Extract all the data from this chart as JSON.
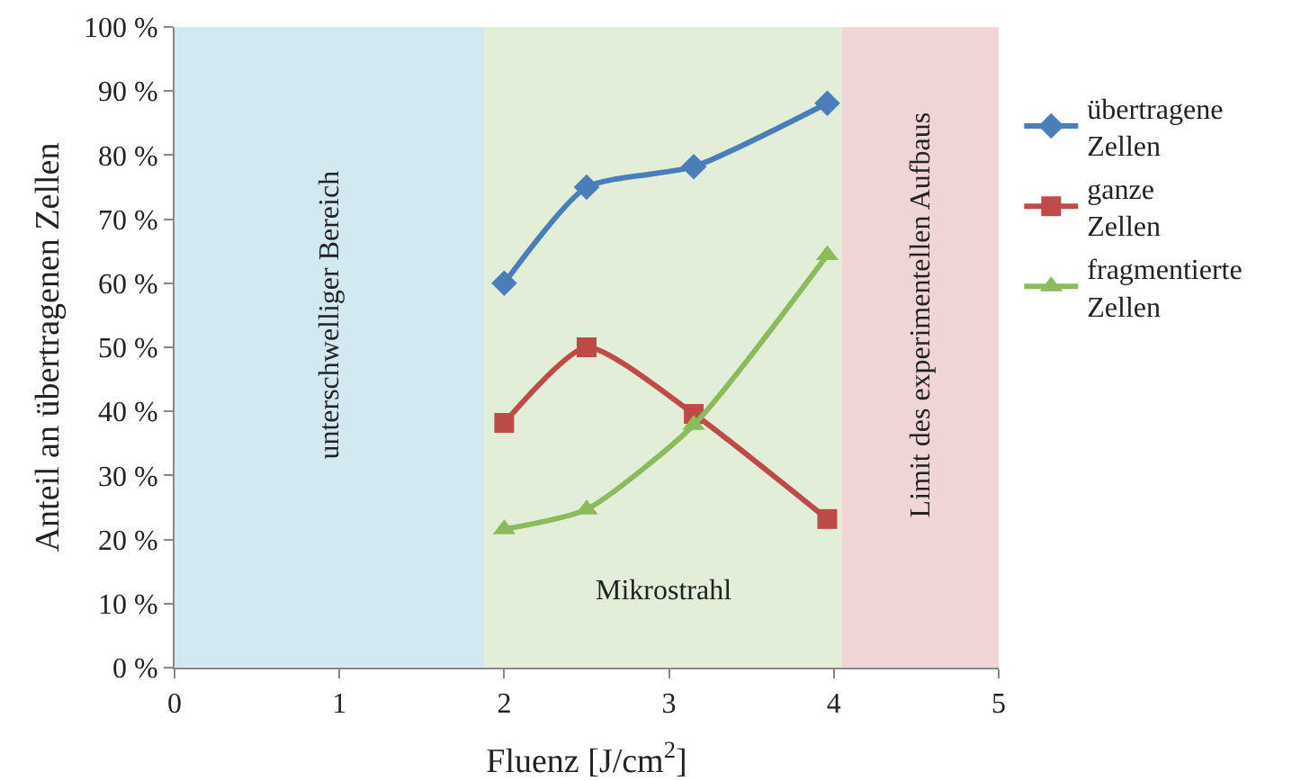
{
  "chart_data": {
    "type": "line",
    "xlabel": "Fluenz [J/cm$^{2}$]",
    "ylabel": "Anteil an übertragenen Zellen",
    "xlim": [
      0,
      5
    ],
    "xticks": [
      0,
      1,
      2,
      3,
      4,
      5
    ],
    "ylim": [
      0,
      100
    ],
    "yticks": [
      {
        "value": 0,
        "label": "0 %"
      },
      {
        "value": 10,
        "label": "10 %"
      },
      {
        "value": 20,
        "label": "20 %"
      },
      {
        "value": 30,
        "label": "30 %"
      },
      {
        "value": 40,
        "label": "40 %"
      },
      {
        "value": 50,
        "label": "50 %"
      },
      {
        "value": 60,
        "label": "60 %"
      },
      {
        "value": 70,
        "label": "70 %"
      },
      {
        "value": 80,
        "label": "80 %"
      },
      {
        "value": 90,
        "label": "90 %"
      },
      {
        "value": 100,
        "label": "100 %"
      }
    ],
    "x": [
      2.0,
      2.5,
      3.15,
      3.96
    ],
    "series": [
      {
        "name": "übertragene Zellen",
        "color": "#4a7ebb",
        "marker": "diamond",
        "values": [
          60,
          75,
          78.2,
          88.1
        ]
      },
      {
        "name": "ganze Zellen",
        "color": "#be4b48",
        "marker": "square",
        "values": [
          38.2,
          50,
          39.6,
          23.2
        ]
      },
      {
        "name": "fragmentierte Zellen",
        "color": "#8cbb5a",
        "marker": "triangle",
        "values": [
          21.6,
          24.7,
          37.9,
          64.4
        ]
      }
    ],
    "bands": [
      {
        "axis": "x",
        "from": 0,
        "to": 1.88,
        "label": "unterschwelliger Bereich",
        "color": "#d3e9f2"
      },
      {
        "axis": "x",
        "from": 1.88,
        "to": 4.05,
        "label": "Mikrostrahl",
        "color": "#e3eed9"
      },
      {
        "axis": "x",
        "from": 4.05,
        "to": 5,
        "label": "Limit des experimentellen Aufbaus",
        "color": "#f0d5d7"
      }
    ],
    "grid": false,
    "legend": "right"
  }
}
